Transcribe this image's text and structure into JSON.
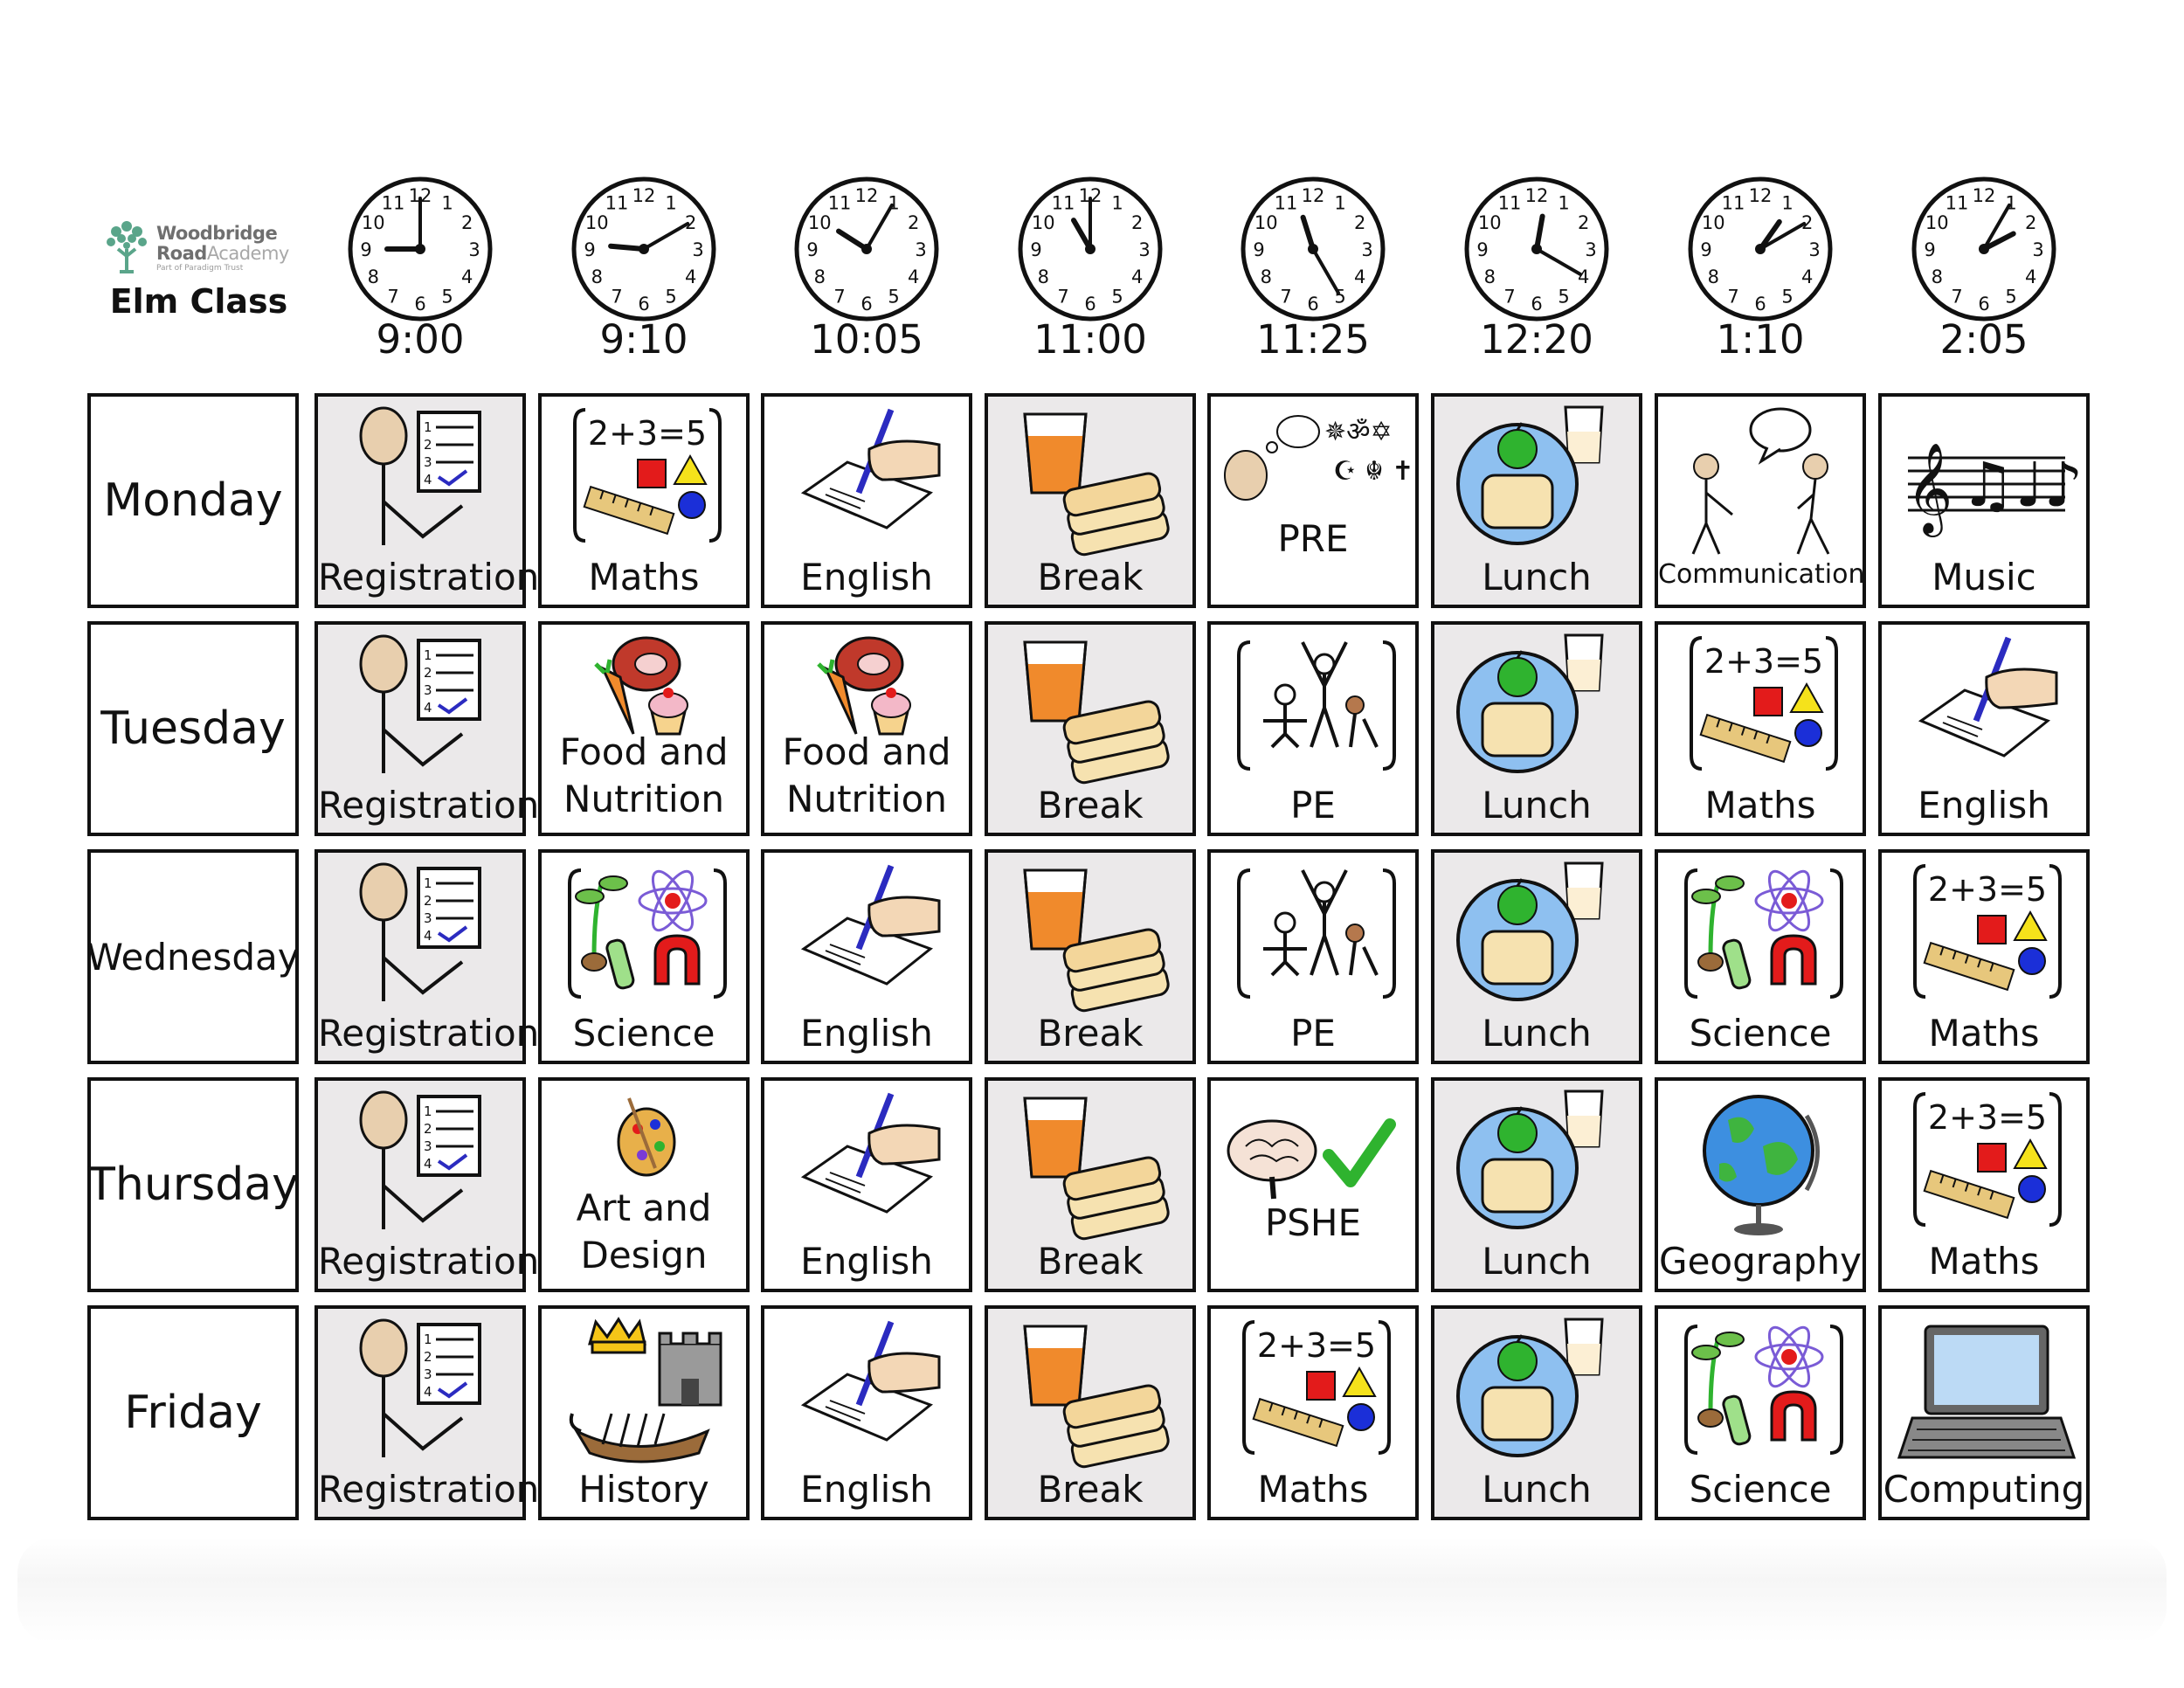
{
  "logo": {
    "line1": "Woodbridge",
    "line2_bold": "Road",
    "line2_light": "Academy",
    "line3": "Part of Paradigm Trust"
  },
  "class_name": "Elm Class",
  "times": [
    "9:00",
    "9:10",
    "10:05",
    "11:00",
    "11:25",
    "12:20",
    "1:10",
    "2:05"
  ],
  "clock_numbers": [
    "12",
    "1",
    "2",
    "3",
    "4",
    "5",
    "6",
    "7",
    "8",
    "9",
    "10",
    "11"
  ],
  "days": [
    "Monday",
    "Tuesday",
    "Wednesday",
    "Thursday",
    "Friday"
  ],
  "schedule": [
    [
      "Registration",
      "Maths",
      "English",
      "Break",
      "PRE",
      "Lunch",
      "Communication",
      "Music"
    ],
    [
      "Registration",
      "Food and Nutrition",
      "Food and Nutrition",
      "Break",
      "PE",
      "Lunch",
      "Maths",
      "English"
    ],
    [
      "Registration",
      "Science",
      "English",
      "Break",
      "PE",
      "Lunch",
      "Science",
      "Maths"
    ],
    [
      "Registration",
      "Art and Design",
      "English",
      "Break",
      "PSHE",
      "Lunch",
      "Geography",
      "Maths"
    ],
    [
      "Registration",
      "History",
      "English",
      "Break",
      "Maths",
      "Lunch",
      "Science",
      "Computing"
    ]
  ],
  "maths_equation": "2+3=5",
  "shaded_color": "#ebe9ea",
  "shaded_columns": [
    "Registration",
    "Break",
    "Lunch"
  ]
}
